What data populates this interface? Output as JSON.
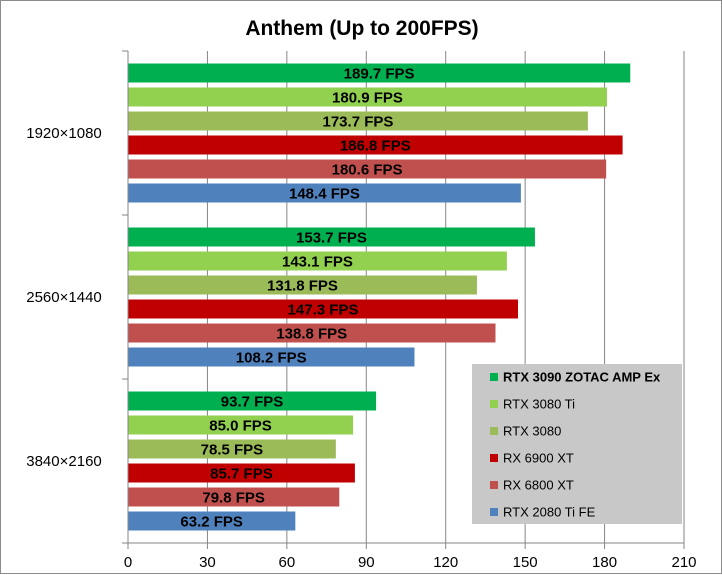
{
  "chart_data": {
    "type": "bar",
    "orientation": "horizontal",
    "title": "Anthem (Up to 200FPS)",
    "xlabel": "",
    "ylabel": "",
    "xlim": [
      0,
      210
    ],
    "xticks": [
      0,
      30,
      60,
      90,
      120,
      150,
      180,
      210
    ],
    "grid": true,
    "legend_position": "bottom-right",
    "categories": [
      "1920×1080",
      "2560×1440",
      "3840×2160"
    ],
    "value_suffix": " FPS",
    "series": [
      {
        "name": "RTX 3090 ZOTAC AMP Ex",
        "color": "#00b050",
        "bold": true,
        "values": [
          189.7,
          153.7,
          93.7
        ]
      },
      {
        "name": "RTX 3080 Ti",
        "color": "#92d050",
        "bold": false,
        "values": [
          180.9,
          143.1,
          85.0
        ]
      },
      {
        "name": "RTX 3080",
        "color": "#9bbb59",
        "bold": false,
        "values": [
          173.7,
          131.8,
          78.5
        ]
      },
      {
        "name": "RX 6900 XT",
        "color": "#c00000",
        "bold": false,
        "values": [
          186.8,
          147.3,
          85.7
        ]
      },
      {
        "name": "RX 6800 XT",
        "color": "#c0504d",
        "bold": false,
        "values": [
          180.6,
          138.8,
          79.8
        ]
      },
      {
        "name": "RTX 2080 Ti FE",
        "color": "#4f81bd",
        "bold": false,
        "values": [
          148.4,
          108.2,
          63.2
        ]
      }
    ],
    "bar_labels": [
      [
        "189.7 FPS",
        "153.7 FPS",
        "93.7 FPS"
      ],
      [
        "180.9 FPS",
        "143.1 FPS",
        "85.0 FPS"
      ],
      [
        "173.7 FPS",
        "131.8 FPS",
        "78.5 FPS"
      ],
      [
        "186.8 FPS",
        "147.3 FPS",
        "85.7 FPS"
      ],
      [
        "180.6 FPS",
        "138.8 FPS",
        "79.8 FPS"
      ],
      [
        "148.4 FPS",
        "108.2 FPS",
        "63.2 FPS"
      ]
    ]
  },
  "colors": {
    "gridline": "#868686",
    "axis": "#868686",
    "legend_bg": "#c8c8c8",
    "background": "#ffffff"
  }
}
